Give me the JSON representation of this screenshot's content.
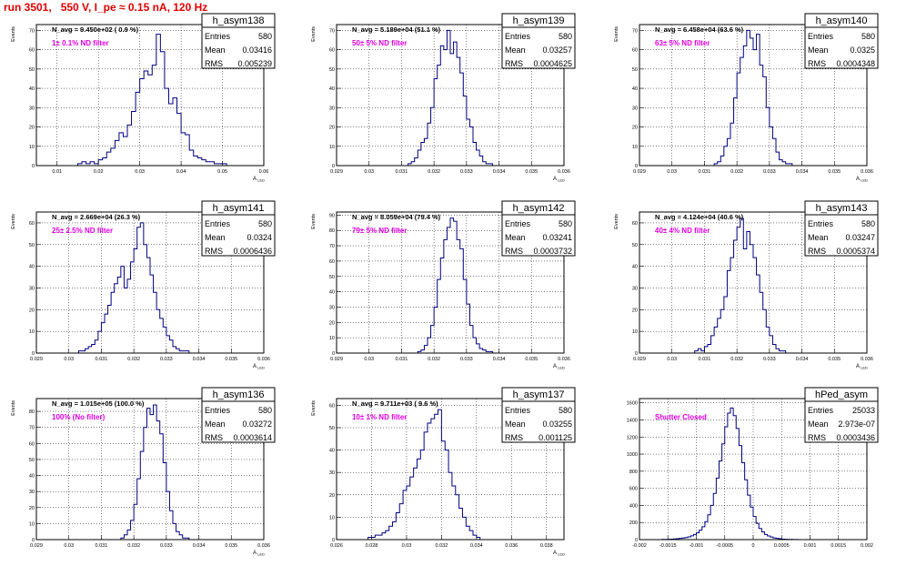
{
  "run_title": "run 3501,   550 V, I_pe ≈ 0.15 nA, 120 Hz",
  "colors": {
    "title": "#e00000",
    "hist": "#000080",
    "annotation": "#e000e0",
    "grid": "#000000"
  },
  "chart_data": [
    {
      "type": "histogram",
      "name": "h_asym138",
      "navg": "N_avg = 9.450e+02 ( 0.9 %)",
      "annotation": "1± 0.1% ND filter",
      "ylabel": "Events",
      "xlabel": "A",
      "xlabel_sub": "LED",
      "stats": [
        [
          "Entries",
          "580"
        ],
        [
          "Mean",
          "0.03416"
        ],
        [
          "RMS",
          "0.005239"
        ]
      ],
      "xlim": [
        0.005,
        0.06
      ],
      "ylim": [
        0,
        73
      ],
      "xticks": [
        0.01,
        0.02,
        0.03,
        0.04,
        0.05,
        0.06
      ],
      "xtick_labels": [
        "0.01",
        "0.02",
        "0.03",
        "0.04",
        "0.05",
        "0.06"
      ],
      "yticks": [
        0,
        10,
        20,
        30,
        40,
        50,
        60,
        70
      ],
      "ytick_labels": [
        "0",
        "10",
        "20",
        "30",
        "40",
        "50",
        "60",
        "70"
      ],
      "bin_width": 0.001,
      "x_start": 0.015,
      "values": [
        1,
        2,
        1,
        2,
        1,
        3,
        4,
        7,
        9,
        13,
        17,
        15,
        21,
        28,
        38,
        45,
        49,
        47,
        52,
        68,
        59,
        40,
        32,
        35,
        27,
        17,
        16,
        8,
        5,
        4,
        3,
        2,
        2,
        1,
        1,
        1
      ]
    },
    {
      "type": "histogram",
      "name": "h_asym139",
      "navg": "N_avg = 5.189e+04 (51.1 %)",
      "annotation": "50± 5% ND filter",
      "ylabel": "Events",
      "xlabel": "A",
      "xlabel_sub": "LED",
      "stats": [
        [
          "Entries",
          "580"
        ],
        [
          "Mean",
          "0.03257"
        ],
        [
          "RMS",
          "0.0004625"
        ]
      ],
      "xlim": [
        0.029,
        0.036
      ],
      "ylim": [
        0,
        73
      ],
      "xticks": [
        0.029,
        0.03,
        0.031,
        0.032,
        0.033,
        0.034,
        0.035,
        0.036
      ],
      "xtick_labels": [
        "0.029",
        "0.03",
        "0.031",
        "0.032",
        "0.033",
        "0.034",
        "0.035",
        "0.036"
      ],
      "yticks": [
        0,
        10,
        20,
        30,
        40,
        50,
        60,
        70
      ],
      "ytick_labels": [
        "0",
        "10",
        "20",
        "30",
        "40",
        "50",
        "60",
        "70"
      ],
      "bin_width": 0.0001,
      "x_start": 0.0312,
      "values": [
        1,
        2,
        4,
        8,
        12,
        14,
        22,
        30,
        45,
        52,
        62,
        60,
        70,
        58,
        64,
        56,
        48,
        36,
        24,
        20,
        12,
        8,
        5,
        2,
        1,
        1
      ]
    },
    {
      "type": "histogram",
      "name": "h_asym140",
      "navg": "N_avg = 6.458e+04 (63.6 %)",
      "annotation": "63± 5% ND filter",
      "ylabel": "Events",
      "xlabel": "A",
      "xlabel_sub": "LED",
      "stats": [
        [
          "Entries",
          "580"
        ],
        [
          "Mean",
          "0.0325"
        ],
        [
          "RMS",
          "0.0004348"
        ]
      ],
      "xlim": [
        0.029,
        0.036
      ],
      "ylim": [
        0,
        73
      ],
      "xticks": [
        0.029,
        0.03,
        0.031,
        0.032,
        0.033,
        0.034,
        0.035,
        0.036
      ],
      "xtick_labels": [
        "0.029",
        "0.03",
        "0.031",
        "0.032",
        "0.033",
        "0.034",
        "0.035",
        "0.036"
      ],
      "yticks": [
        0,
        10,
        20,
        30,
        40,
        50,
        60,
        70
      ],
      "ytick_labels": [
        "0",
        "10",
        "20",
        "30",
        "40",
        "50",
        "60",
        "70"
      ],
      "bin_width": 0.0001,
      "x_start": 0.0313,
      "values": [
        1,
        2,
        5,
        10,
        14,
        22,
        35,
        48,
        56,
        62,
        70,
        66,
        60,
        68,
        52,
        46,
        30,
        20,
        14,
        7,
        3,
        2,
        1,
        1
      ]
    },
    {
      "type": "histogram",
      "name": "h_asym141",
      "navg": "N_avg = 2.669e+04 (26.3 %)",
      "annotation": "25± 2.5% ND filter",
      "ylabel": "Events",
      "xlabel": "A",
      "xlabel_sub": "LED",
      "stats": [
        [
          "Entries",
          "580"
        ],
        [
          "Mean",
          "0.0324"
        ],
        [
          "RMS",
          "0.0006436"
        ]
      ],
      "xlim": [
        0.029,
        0.036
      ],
      "ylim": [
        0,
        65
      ],
      "xticks": [
        0.029,
        0.03,
        0.031,
        0.032,
        0.033,
        0.034,
        0.035,
        0.036
      ],
      "xtick_labels": [
        "0.029",
        "0.03",
        "0.031",
        "0.032",
        "0.033",
        "0.034",
        "0.035",
        "0.036"
      ],
      "yticks": [
        0,
        10,
        20,
        30,
        40,
        50,
        60
      ],
      "ytick_labels": [
        "0",
        "10",
        "20",
        "30",
        "40",
        "50",
        "60"
      ],
      "bin_width": 0.0001,
      "x_start": 0.0303,
      "values": [
        1,
        1,
        2,
        3,
        4,
        6,
        10,
        14,
        18,
        22,
        28,
        32,
        35,
        40,
        30,
        34,
        42,
        48,
        58,
        60,
        50,
        44,
        36,
        28,
        20,
        16,
        12,
        8,
        6,
        3,
        2,
        1,
        1,
        1
      ]
    },
    {
      "type": "histogram",
      "name": "h_asym142",
      "navg": "N_avg = 8.059e+04 (79.4 %)",
      "annotation": "79± 5% ND filter",
      "ylabel": "Events",
      "xlabel": "A",
      "xlabel_sub": "LED",
      "stats": [
        [
          "Entries",
          "580"
        ],
        [
          "Mean",
          "0.03241"
        ],
        [
          "RMS",
          "0.0003732"
        ]
      ],
      "xlim": [
        0.029,
        0.036
      ],
      "ylim": [
        0,
        92
      ],
      "xticks": [
        0.029,
        0.03,
        0.031,
        0.032,
        0.033,
        0.034,
        0.035,
        0.036
      ],
      "xtick_labels": [
        "0.029",
        "0.03",
        "0.031",
        "0.032",
        "0.033",
        "0.034",
        "0.035",
        "0.036"
      ],
      "yticks": [
        0,
        10,
        20,
        30,
        40,
        50,
        60,
        70,
        80,
        90
      ],
      "ytick_labels": [
        "0",
        "10",
        "20",
        "30",
        "40",
        "50",
        "60",
        "70",
        "80",
        "90"
      ],
      "bin_width": 0.0001,
      "x_start": 0.0315,
      "values": [
        1,
        2,
        5,
        10,
        18,
        30,
        48,
        62,
        74,
        82,
        88,
        86,
        74,
        68,
        48,
        32,
        18,
        10,
        6,
        3,
        2,
        1,
        1
      ]
    },
    {
      "type": "histogram",
      "name": "h_asym143",
      "navg": "N_avg = 4.124e+04 (40.6 %)",
      "annotation": "40± 4% ND filter",
      "ylabel": "Events",
      "xlabel": "A",
      "xlabel_sub": "LED",
      "stats": [
        [
          "Entries",
          "580"
        ],
        [
          "Mean",
          "0.03247"
        ],
        [
          "RMS",
          "0.0005374"
        ]
      ],
      "xlim": [
        0.029,
        0.036
      ],
      "ylim": [
        0,
        65
      ],
      "xticks": [
        0.029,
        0.03,
        0.031,
        0.032,
        0.033,
        0.034,
        0.035,
        0.036
      ],
      "xtick_labels": [
        "0.029",
        "0.03",
        "0.031",
        "0.032",
        "0.033",
        "0.034",
        "0.035",
        "0.036"
      ],
      "yticks": [
        0,
        10,
        20,
        30,
        40,
        50,
        60
      ],
      "ytick_labels": [
        "0",
        "10",
        "20",
        "30",
        "40",
        "50",
        "60"
      ],
      "bin_width": 0.0001,
      "x_start": 0.0307,
      "values": [
        1,
        2,
        1,
        3,
        4,
        8,
        12,
        16,
        20,
        26,
        38,
        44,
        52,
        58,
        62,
        48,
        56,
        50,
        44,
        36,
        28,
        20,
        12,
        8,
        4,
        2,
        1,
        1
      ]
    },
    {
      "type": "histogram",
      "name": "h_asym136",
      "navg": "N_avg = 1.015e+05 (100.0 %)",
      "annotation": "100% (No filter)",
      "ylabel": "Events",
      "xlabel": "A",
      "xlabel_sub": "LED",
      "stats": [
        [
          "Entries",
          "580"
        ],
        [
          "Mean",
          "0.03272"
        ],
        [
          "RMS",
          "0.0003614"
        ]
      ],
      "xlim": [
        0.029,
        0.036
      ],
      "ylim": [
        0,
        88
      ],
      "xticks": [
        0.029,
        0.03,
        0.031,
        0.032,
        0.033,
        0.034,
        0.035,
        0.036
      ],
      "xtick_labels": [
        "0.029",
        "0.03",
        "0.031",
        "0.032",
        "0.033",
        "0.034",
        "0.035",
        "0.036"
      ],
      "yticks": [
        0,
        10,
        20,
        30,
        40,
        50,
        60,
        70,
        80
      ],
      "ytick_labels": [
        "0",
        "10",
        "20",
        "30",
        "40",
        "50",
        "60",
        "70",
        "80"
      ],
      "bin_width": 0.0001,
      "x_start": 0.0316,
      "values": [
        1,
        3,
        6,
        12,
        22,
        38,
        55,
        70,
        82,
        78,
        84,
        74,
        66,
        48,
        30,
        18,
        10,
        5,
        3,
        1,
        1
      ]
    },
    {
      "type": "histogram",
      "name": "h_asym137",
      "navg": "N_avg = 9.711e+03 ( 9.6 %)",
      "annotation": "10± 1% ND filter",
      "ylabel": "Events",
      "xlabel": "A",
      "xlabel_sub": "LED",
      "stats": [
        [
          "Entries",
          "580"
        ],
        [
          "Mean",
          "0.03255"
        ],
        [
          "RMS",
          "0.001125"
        ]
      ],
      "xlim": [
        0.026,
        0.039
      ],
      "ylim": [
        0,
        63
      ],
      "xticks": [
        0.026,
        0.028,
        0.03,
        0.032,
        0.034,
        0.036,
        0.038
      ],
      "xtick_labels": [
        "0.026",
        "0.028",
        "0.03",
        "0.032",
        "0.034",
        "0.036",
        "0.038"
      ],
      "yticks": [
        0,
        10,
        20,
        30,
        40,
        50,
        60
      ],
      "ytick_labels": [
        "0",
        "10",
        "20",
        "30",
        "40",
        "50",
        "60"
      ],
      "bin_width": 0.0002,
      "x_start": 0.0278,
      "values": [
        1,
        1,
        2,
        2,
        3,
        4,
        6,
        8,
        12,
        16,
        22,
        24,
        28,
        32,
        36,
        40,
        48,
        52,
        54,
        56,
        58,
        44,
        40,
        30,
        24,
        20,
        14,
        10,
        6,
        4,
        2,
        1
      ]
    },
    {
      "type": "histogram",
      "name": "hPed_asym",
      "navg": "",
      "annotation": "Shutter Closed",
      "ylabel": "",
      "xlabel": "",
      "xlabel_sub": "",
      "stats": [
        [
          "Entries",
          "25033"
        ],
        [
          "Mean",
          "2.973e-07"
        ],
        [
          "RMS",
          "0.0003436"
        ]
      ],
      "xlim": [
        -0.002,
        0.002
      ],
      "ylim": [
        0,
        1650
      ],
      "xticks": [
        -0.002,
        -0.0015,
        -0.001,
        -0.0005,
        0,
        0.0005,
        0.001,
        0.0015,
        0.002
      ],
      "xtick_labels": [
        "-0.002",
        "-0.0015",
        "-0.001",
        "-0.0005",
        "0",
        "0.0005",
        "0.001",
        "0.0015",
        "0.002"
      ],
      "yticks": [
        0,
        200,
        400,
        600,
        800,
        1000,
        1200,
        1400,
        1600
      ],
      "ytick_labels": [
        "0",
        "200",
        "400",
        "600",
        "800",
        "1000",
        "1200",
        "1400",
        "1600"
      ],
      "bin_width": 5e-05,
      "x_start": -0.0016,
      "values": [
        2,
        3,
        4,
        6,
        8,
        10,
        14,
        18,
        24,
        32,
        44,
        60,
        80,
        110,
        150,
        210,
        290,
        400,
        540,
        720,
        920,
        1120,
        1320,
        1480,
        1540,
        1450,
        1300,
        1100,
        900,
        700,
        520,
        380,
        270,
        190,
        130,
        90,
        60,
        42,
        30,
        20,
        14,
        10,
        6,
        4,
        3,
        2,
        1,
        1
      ]
    }
  ]
}
